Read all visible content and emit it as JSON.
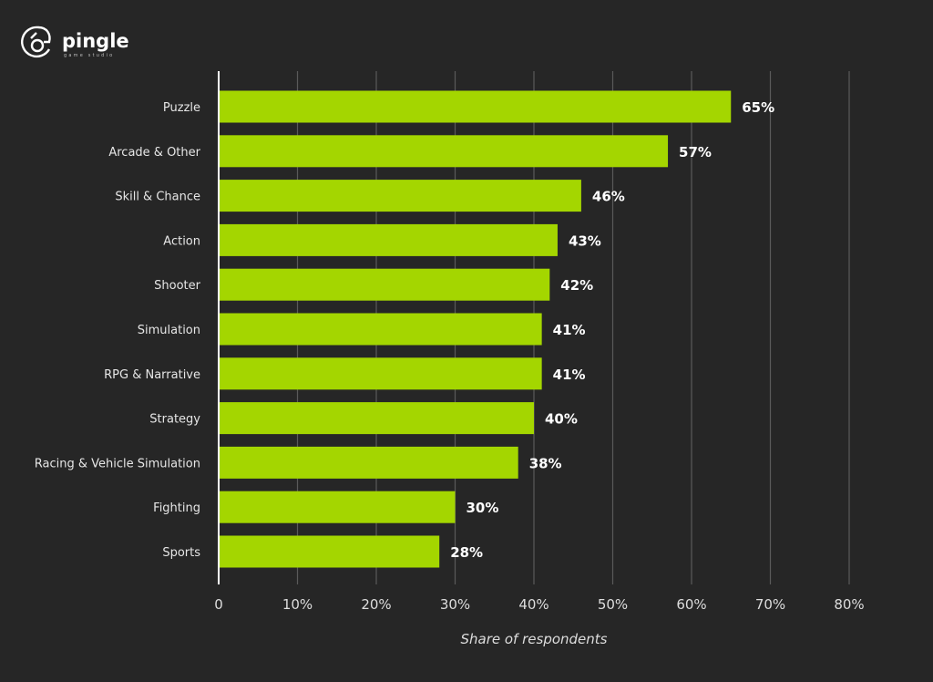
{
  "brand": {
    "name": "pingle",
    "subtitle": "game studio"
  },
  "colors": {
    "background": "#262626",
    "bar": "#a4d600",
    "grid": "#5a5a5a",
    "axis": "#ffffff"
  },
  "chart_data": {
    "type": "bar",
    "orientation": "horizontal",
    "title": "",
    "xlabel": "Share of respondents",
    "ylabel": "",
    "xlim": [
      0,
      80
    ],
    "grid": true,
    "categories": [
      "Puzzle",
      "Arcade & Other",
      "Skill & Chance",
      "Action",
      "Shooter",
      "Simulation",
      "RPG & Narrative",
      "Strategy",
      "Racing & Vehicle Simulation",
      "Fighting",
      "Sports"
    ],
    "values": [
      65,
      57,
      46,
      43,
      42,
      41,
      41,
      40,
      38,
      30,
      28
    ],
    "value_labels": [
      "65%",
      "57%",
      "46%",
      "43%",
      "42%",
      "41%",
      "41%",
      "40%",
      "38%",
      "30%",
      "28%"
    ],
    "ticks": [
      0,
      10,
      20,
      30,
      40,
      50,
      60,
      70,
      80
    ],
    "tick_labels": [
      "0",
      "10%",
      "20%",
      "30%",
      "40%",
      "50%",
      "60%",
      "70%",
      "80%"
    ]
  }
}
